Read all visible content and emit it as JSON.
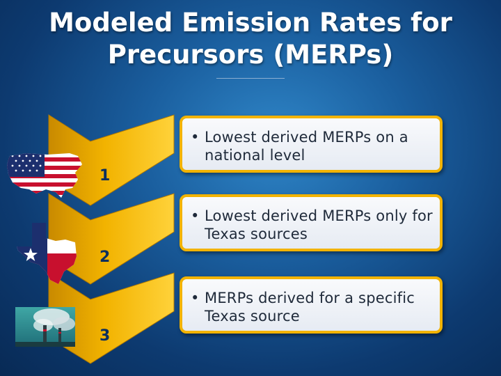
{
  "slide": {
    "title_line1": "Modeled Emission Rates for",
    "title_line2": "Precursors (MERPs)"
  },
  "steps": [
    {
      "number": "1",
      "text": "Lowest derived MERPs on a national level",
      "image_icon": "us-flag-map-icon"
    },
    {
      "number": "2",
      "text": "Lowest derived MERPs only for Texas sources",
      "image_icon": "texas-flag-map-icon"
    },
    {
      "number": "3",
      "text": "MERPs derived for a specific Texas source",
      "image_icon": "smokestack-photo-icon"
    }
  ],
  "bullet_char": "•",
  "colors": {
    "background": "#1a5e9e",
    "chevron": "#f2b300",
    "card_border": "#f2b300",
    "card_fill": "#f3f5f9",
    "number_text": "#0c2f5e",
    "title_text": "#ffffff"
  }
}
